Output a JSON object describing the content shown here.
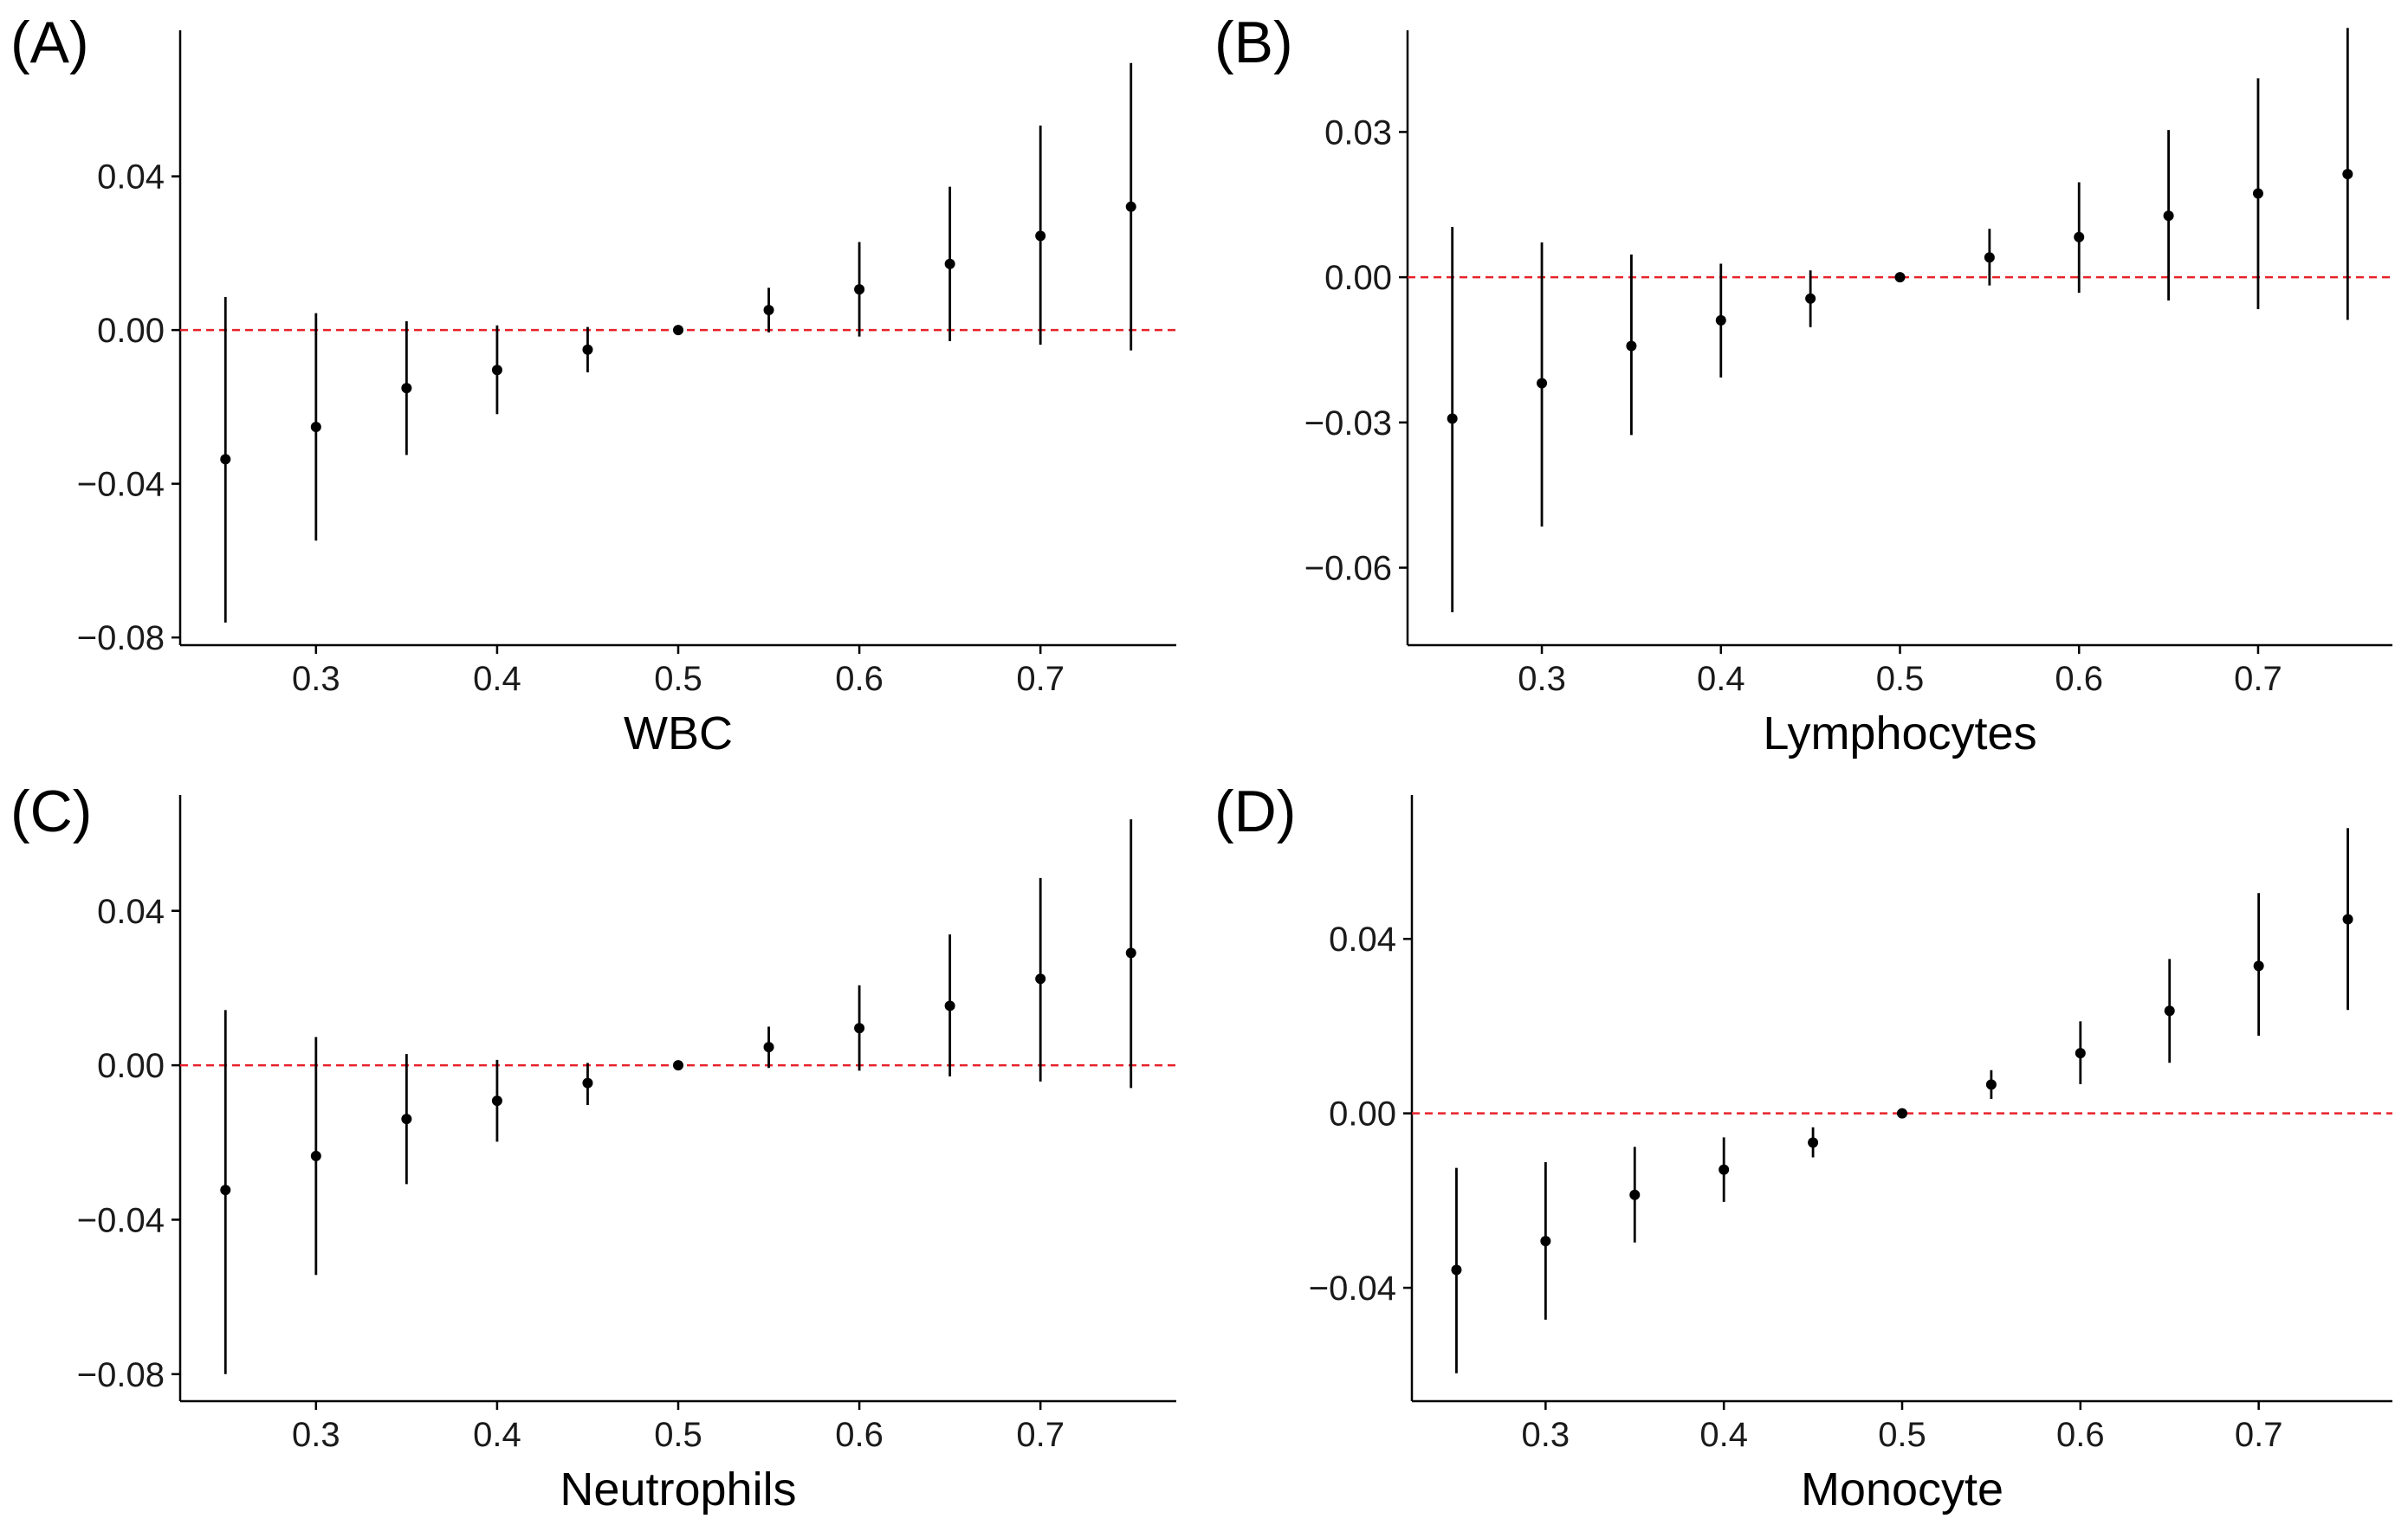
{
  "colors": {
    "reference": "#e8222a",
    "points": "#000000"
  },
  "chart_data": [
    {
      "type": "scatter",
      "panel": "(A)",
      "xlabel": "WBC",
      "ylabel": "",
      "xlim": [
        0.225,
        0.775
      ],
      "ylim": [
        -0.082,
        0.078
      ],
      "x_ticks": [
        "0.3",
        "0.4",
        "0.5",
        "0.6",
        "0.7"
      ],
      "y_ticks": [
        "−0.08",
        "−0.04",
        "0.00",
        "0.04"
      ],
      "x_tick_values": [
        0.3,
        0.4,
        0.5,
        0.6,
        0.7
      ],
      "y_tick_values": [
        -0.08,
        -0.04,
        0.0,
        0.04
      ],
      "reference_line": 0.0,
      "x": [
        0.25,
        0.3,
        0.35,
        0.4,
        0.45,
        0.5,
        0.55,
        0.6,
        0.65,
        0.7,
        0.75
      ],
      "y": [
        -0.0336,
        -0.0252,
        -0.0151,
        -0.0104,
        -0.0051,
        0.0,
        0.0052,
        0.0106,
        0.0172,
        0.0245,
        0.0321
      ],
      "lower": [
        -0.0761,
        -0.0548,
        -0.0325,
        -0.0219,
        -0.011,
        0.0,
        -0.0006,
        -0.0017,
        -0.0029,
        -0.0038,
        -0.0053
      ],
      "upper": [
        0.0086,
        0.0044,
        0.0023,
        0.0012,
        0.0008,
        0.0,
        0.011,
        0.0229,
        0.0373,
        0.0532,
        0.0695
      ]
    },
    {
      "type": "scatter",
      "panel": "(B)",
      "xlabel": "Lymphocytes",
      "ylabel": "",
      "xlim": [
        0.225,
        0.775
      ],
      "ylim": [
        -0.076,
        0.051
      ],
      "x_ticks": [
        "0.3",
        "0.4",
        "0.5",
        "0.6",
        "0.7"
      ],
      "y_ticks": [
        "−0.06",
        "−0.03",
        "0.00",
        "0.03"
      ],
      "x_tick_values": [
        0.3,
        0.4,
        0.5,
        0.6,
        0.7
      ],
      "y_tick_values": [
        -0.06,
        -0.03,
        0.0,
        0.03
      ],
      "reference_line": 0.0,
      "x": [
        0.25,
        0.3,
        0.35,
        0.4,
        0.45,
        0.5,
        0.55,
        0.6,
        0.65,
        0.7,
        0.75
      ],
      "y": [
        -0.0292,
        -0.0219,
        -0.0142,
        -0.0089,
        -0.0044,
        0.0,
        0.0041,
        0.0083,
        0.0127,
        0.0173,
        0.0213
      ],
      "lower": [
        -0.0692,
        -0.0515,
        -0.0326,
        -0.0207,
        -0.0103,
        0.0,
        -0.0017,
        -0.0032,
        -0.0048,
        -0.0066,
        -0.0088
      ],
      "upper": [
        0.0104,
        0.0072,
        0.0047,
        0.0028,
        0.0014,
        0.0,
        0.01,
        0.0196,
        0.0304,
        0.0411,
        0.0515
      ]
    },
    {
      "type": "scatter",
      "panel": "(C)",
      "xlabel": "Neutrophils",
      "ylabel": "",
      "xlim": [
        0.225,
        0.775
      ],
      "ylim": [
        -0.087,
        0.07
      ],
      "x_ticks": [
        "0.3",
        "0.4",
        "0.5",
        "0.6",
        "0.7"
      ],
      "y_ticks": [
        "−0.08",
        "−0.04",
        "0.00",
        "0.04"
      ],
      "x_tick_values": [
        0.3,
        0.4,
        0.5,
        0.6,
        0.7
      ],
      "y_tick_values": [
        -0.08,
        -0.04,
        0.0,
        0.04
      ],
      "reference_line": 0.0,
      "x": [
        0.25,
        0.3,
        0.35,
        0.4,
        0.45,
        0.5,
        0.55,
        0.6,
        0.65,
        0.7,
        0.75
      ],
      "y": [
        -0.0323,
        -0.0235,
        -0.0139,
        -0.0092,
        -0.0046,
        0.0,
        0.0047,
        0.0096,
        0.0154,
        0.0224,
        0.0291
      ],
      "lower": [
        -0.08,
        -0.0543,
        -0.0308,
        -0.0198,
        -0.0103,
        0.0,
        -0.0007,
        -0.0014,
        -0.0029,
        -0.0042,
        -0.0059
      ],
      "upper": [
        0.0143,
        0.0073,
        0.0029,
        0.0014,
        0.0006,
        0.0,
        0.01,
        0.0207,
        0.0339,
        0.0485,
        0.0637
      ]
    },
    {
      "type": "scatter",
      "panel": "(D)",
      "xlabel": "Monocyte",
      "ylabel": "",
      "xlim": [
        0.225,
        0.775
      ],
      "ylim": [
        -0.066,
        0.073
      ],
      "x_ticks": [
        "0.3",
        "0.4",
        "0.5",
        "0.6",
        "0.7"
      ],
      "y_ticks": [
        "−0.04",
        "0.00",
        "0.04"
      ],
      "x_tick_values": [
        0.3,
        0.4,
        0.5,
        0.6,
        0.7
      ],
      "y_tick_values": [
        -0.04,
        0.0,
        0.04
      ],
      "reference_line": 0.0,
      "x": [
        0.25,
        0.3,
        0.35,
        0.4,
        0.45,
        0.5,
        0.55,
        0.6,
        0.65,
        0.7,
        0.75
      ],
      "y": [
        -0.0359,
        -0.0293,
        -0.0187,
        -0.0129,
        -0.0067,
        0.0,
        0.0066,
        0.0138,
        0.0235,
        0.0338,
        0.0445
      ],
      "lower": [
        -0.0596,
        -0.0473,
        -0.0296,
        -0.0203,
        -0.0101,
        0.0,
        0.0033,
        0.0067,
        0.0116,
        0.0178,
        0.0237
      ],
      "upper": [
        -0.0125,
        -0.0112,
        -0.0077,
        -0.0055,
        -0.0032,
        0.0,
        0.0099,
        0.0211,
        0.0354,
        0.0505,
        0.0654
      ]
    }
  ]
}
